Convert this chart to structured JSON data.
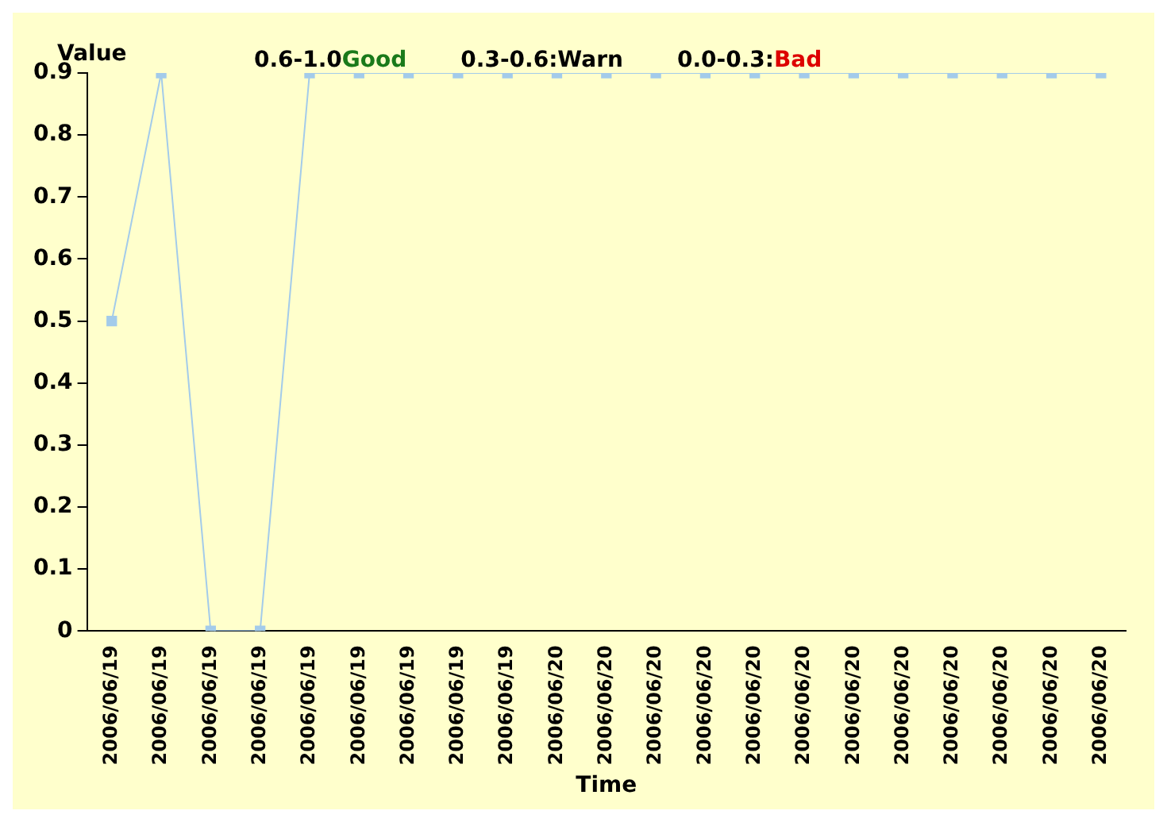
{
  "chart_data": {
    "type": "line",
    "xlabel": "Time",
    "ylabel": "Value",
    "annotations": [
      "0.6-1.0",
      "Good",
      "0.3-0.6:Warn",
      "0.0-0.3:",
      "Bad"
    ],
    "categories": [
      "2006/06/19",
      "2006/06/19",
      "2006/06/19",
      "2006/06/19",
      "2006/06/19",
      "2006/06/19",
      "2006/06/19",
      "2006/06/19",
      "2006/06/19",
      "2006/06/20",
      "2006/06/20",
      "2006/06/20",
      "2006/06/20",
      "2006/06/20",
      "2006/06/20",
      "2006/06/20",
      "2006/06/20",
      "2006/06/20",
      "2006/06/20",
      "2006/06/20",
      "2006/06/20"
    ],
    "series": [
      {
        "color": "#a3cbea",
        "values": [
          0.5,
          0.9,
          0,
          0,
          0.9,
          0.9,
          0.9,
          0.9,
          0.9,
          0.9,
          0.9,
          0.9,
          0.9,
          0.9,
          0.9,
          0.9,
          0.9,
          0.9,
          0.9,
          0.9,
          0.9
        ]
      }
    ],
    "ylim": [
      0,
      0.9
    ],
    "yticks": [
      0,
      0.1,
      0.2,
      0.3,
      0.4,
      0.5,
      0.6,
      0.7,
      0.8,
      0.9
    ],
    "grid": false,
    "legend": false,
    "marker": "square",
    "line_style": "solid"
  }
}
